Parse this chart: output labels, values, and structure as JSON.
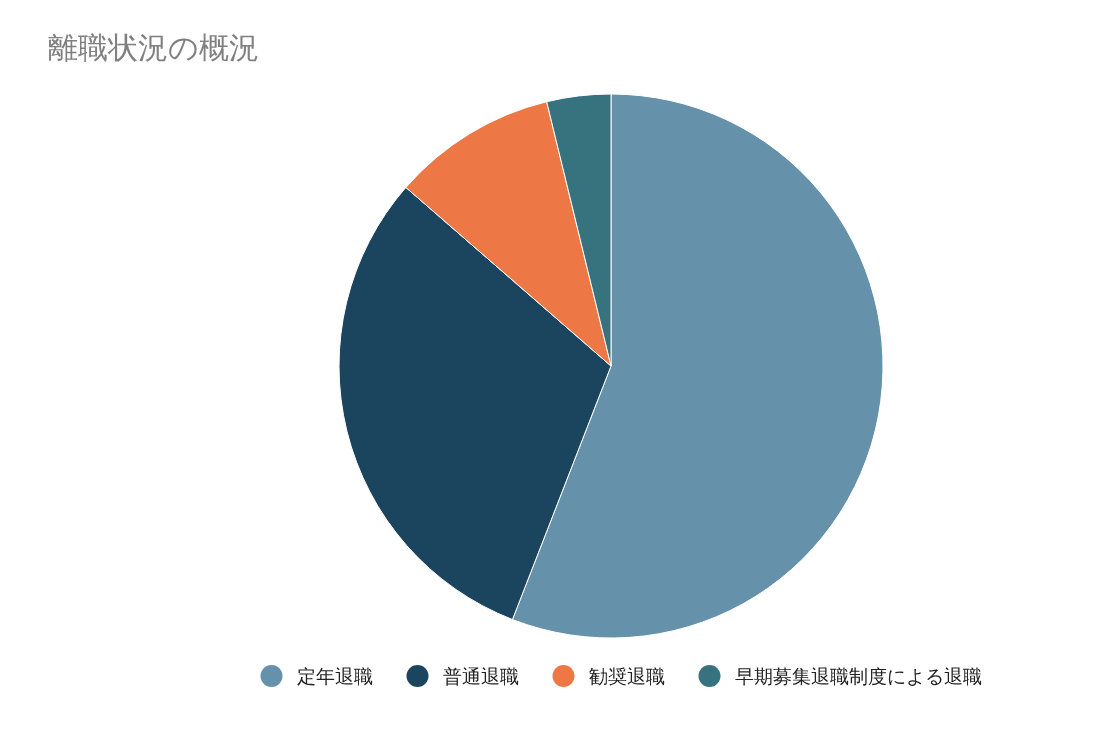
{
  "chart_data": {
    "type": "pie",
    "title": "離職状況の概況",
    "categories": [
      "定年退職",
      "普通退職",
      "勧奨退職",
      "早期募集退職制度による退職"
    ],
    "values": [
      55.9,
      30.5,
      9.8,
      3.8
    ],
    "colors": [
      "#6591aa",
      "#1b455e",
      "#ee7845",
      "#36737f"
    ],
    "legend": "bottom"
  }
}
